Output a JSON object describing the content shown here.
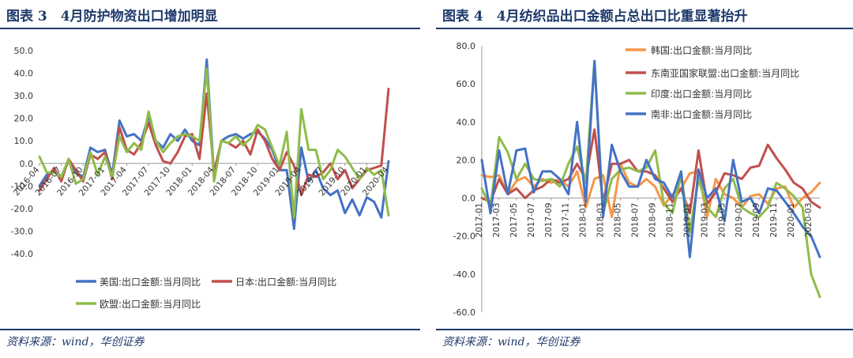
{
  "chart_data": [
    {
      "type": "line",
      "title": "图表 3　4月防护物资出口增加明显",
      "source": "资料来源：wind，华创证券",
      "ylim": [
        -40,
        50
      ],
      "yticks": [
        "50.0",
        "40.0",
        "30.0",
        "20.0",
        "10.0",
        "0.0",
        "-10.0",
        "-20.0",
        "-30.0",
        "-40.0"
      ],
      "xtick_labels": [
        "2016-04",
        "2016-07",
        "2016-10",
        "2017-01",
        "2017-04",
        "2017-07",
        "2017-10",
        "2018-01",
        "2018-04",
        "2018-07",
        "2018-10",
        "2019-01",
        "2019-04",
        "2019-07",
        "2019-10",
        "2020-01",
        "2020-04"
      ],
      "x": [
        "2016-04",
        "2016-05",
        "2016-06",
        "2016-07",
        "2016-08",
        "2016-09",
        "2016-10",
        "2016-11",
        "2016-12",
        "2017-01",
        "2017-02",
        "2017-03",
        "2017-04",
        "2017-05",
        "2017-06",
        "2017-07",
        "2017-08",
        "2017-09",
        "2017-10",
        "2017-11",
        "2017-12",
        "2018-01",
        "2018-02",
        "2018-03",
        "2018-04",
        "2018-05",
        "2018-06",
        "2018-07",
        "2018-08",
        "2018-09",
        "2018-10",
        "2018-11",
        "2018-12",
        "2019-01",
        "2019-02",
        "2019-03",
        "2019-04",
        "2019-05",
        "2019-06",
        "2019-07",
        "2019-08",
        "2019-09",
        "2019-10",
        "2019-11",
        "2019-12",
        "2020-01",
        "2020-02",
        "2020-03",
        "2020-04"
      ],
      "legend": "bottom",
      "series": [
        {
          "name": "美国:出口金额:当月同比",
          "color": "#4472c4",
          "values": [
            -10,
            -5,
            -3,
            -6,
            1,
            -4,
            -6,
            7,
            5,
            6,
            -5,
            19,
            12,
            13,
            10,
            21,
            10,
            7,
            13,
            10,
            15,
            10,
            8,
            46,
            -6,
            10,
            12,
            13,
            11,
            13,
            14,
            11,
            6,
            -3,
            -3,
            -29,
            7,
            -8,
            -3,
            -11,
            -14,
            -12,
            -22,
            -16,
            -23,
            -15,
            -17,
            -24,
            1
          ]
        },
        {
          "name": "日本:出口金额:当月同比",
          "color": "#c0504d",
          "values": [
            -12,
            -7,
            -2,
            -8,
            2,
            -3,
            -8,
            4,
            2,
            5,
            -7,
            16,
            6,
            4,
            9,
            18,
            8,
            1,
            0,
            5,
            12,
            13,
            2,
            31,
            -4,
            10,
            9,
            7,
            10,
            4,
            15,
            10,
            2,
            -3,
            5,
            -1,
            -14,
            -5,
            -6,
            -4,
            0,
            -7,
            -3,
            -11,
            -7,
            -3,
            -2,
            -1,
            33
          ]
        },
        {
          "name": "欧盟:出口金额:当月同比",
          "color": "#8fbc4a",
          "values": [
            3,
            -4,
            -4,
            -6,
            2,
            -9,
            -7,
            5,
            -5,
            3,
            -6,
            12,
            5,
            9,
            6,
            23,
            10,
            5,
            9,
            12,
            13,
            12,
            10,
            42,
            -8,
            10,
            9,
            12,
            8,
            11,
            17,
            15,
            7,
            -1,
            14,
            -24,
            24,
            6,
            6,
            -7,
            -3,
            6,
            3,
            -2,
            -7,
            -2,
            -5,
            -3,
            -23
          ]
        }
      ]
    },
    {
      "type": "line",
      "title": "图表 4　4月纺织品出口金额占总出口比重显著抬升",
      "source": "资料来源：wind，华创证券",
      "ylim": [
        -60,
        80
      ],
      "yticks": [
        "80.0",
        "60.0",
        "40.0",
        "20.0",
        "0.0",
        "-20.0",
        "-40.0",
        "-60.0"
      ],
      "xtick_labels": [
        "2017-01",
        "2017-03",
        "2017-05",
        "2017-07",
        "2017-09",
        "2017-11",
        "2018-01",
        "2018-03",
        "2018-05",
        "2018-07",
        "2018-09",
        "2018-11",
        "2019-01",
        "2019-03",
        "2019-05",
        "2019-07",
        "2019-09",
        "2019-11",
        "2020-01",
        "2020-03"
      ],
      "x": [
        "2017-01",
        "2017-02",
        "2017-03",
        "2017-04",
        "2017-05",
        "2017-06",
        "2017-07",
        "2017-08",
        "2017-09",
        "2017-10",
        "2017-11",
        "2017-12",
        "2018-01",
        "2018-02",
        "2018-03",
        "2018-04",
        "2018-05",
        "2018-06",
        "2018-07",
        "2018-08",
        "2018-09",
        "2018-10",
        "2018-11",
        "2018-12",
        "2019-01",
        "2019-02",
        "2019-03",
        "2019-04",
        "2019-05",
        "2019-06",
        "2019-07",
        "2019-08",
        "2019-09",
        "2019-10",
        "2019-11",
        "2019-12",
        "2020-01",
        "2020-02",
        "2020-03",
        "2020-04"
      ],
      "legend": "top-right",
      "series": [
        {
          "name": "韩国:出口金额:当月同比",
          "color": "#f79646",
          "values": [
            12,
            11,
            12,
            2,
            9,
            11,
            6,
            10,
            8,
            10,
            6,
            14,
            -5,
            10,
            12,
            -10,
            18,
            8,
            6,
            10,
            6,
            -4,
            2,
            5,
            13,
            14,
            -10,
            10,
            2,
            0,
            -5,
            1,
            2,
            -3,
            5,
            6,
            -5,
            0,
            3,
            8
          ]
        },
        {
          "name": "东南亚国家联盟:出口金额:当月同比",
          "color": "#c0504d",
          "values": [
            0,
            -2,
            10,
            2,
            5,
            0,
            4,
            6,
            10,
            8,
            10,
            18,
            10,
            36,
            -2,
            18,
            18,
            20,
            14,
            14,
            12,
            5,
            -2,
            5,
            -8,
            25,
            -3,
            3,
            13,
            12,
            10,
            16,
            17,
            28,
            21,
            15,
            8,
            5,
            -2,
            -5
          ]
        },
        {
          "name": "印度:出口金额:当月同比",
          "color": "#8fbc4a",
          "values": [
            5,
            -5,
            32,
            24,
            10,
            18,
            10,
            9,
            10,
            6,
            18,
            27,
            8,
            72,
            -8,
            10,
            15,
            16,
            14,
            16,
            25,
            -3,
            -8,
            12,
            -18,
            10,
            -5,
            -10,
            5,
            10,
            -5,
            -8,
            -10,
            -5,
            8,
            5,
            1,
            -5,
            -40,
            -52
          ]
        },
        {
          "name": "南非:出口金额:当月同比",
          "color": "#4472c4",
          "values": [
            20,
            -8,
            25,
            2,
            25,
            26,
            3,
            14,
            14,
            10,
            2,
            40,
            -2,
            72,
            -10,
            28,
            14,
            6,
            6,
            20,
            10,
            8,
            0,
            14,
            -31,
            15,
            0,
            5,
            -12,
            20,
            -2,
            0,
            -8,
            5,
            4,
            -2,
            -8,
            -15,
            -20,
            -31
          ]
        }
      ]
    }
  ]
}
